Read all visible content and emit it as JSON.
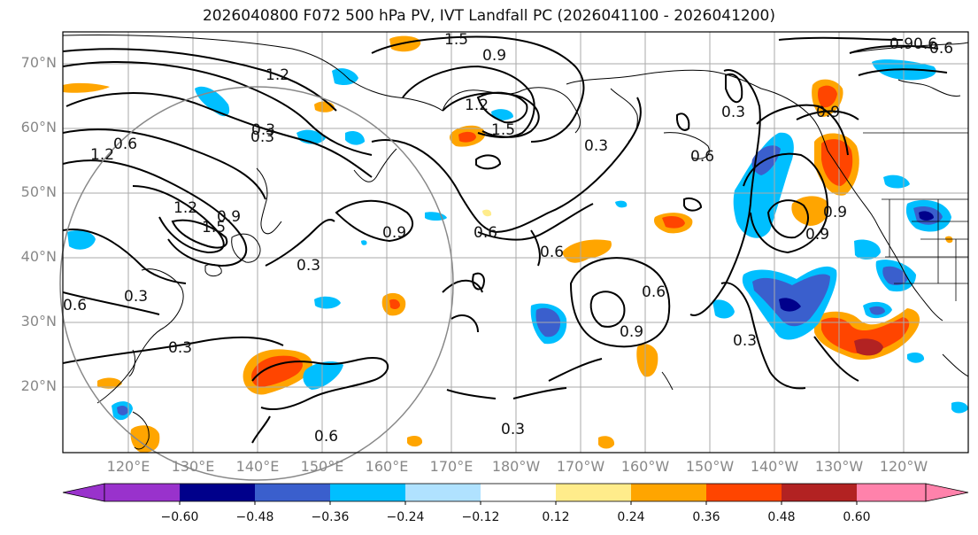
{
  "title": "2026040800 F072 500 hPa PV, IVT Landfall PC (2026041100 - 2026041200)",
  "lat_labels": [
    "70°N",
    "60°N",
    "50°N",
    "40°N",
    "30°N",
    "20°N"
  ],
  "lon_labels": [
    "120°E",
    "130°E",
    "140°E",
    "150°E",
    "160°E",
    "170°E",
    "180°W",
    "170°W",
    "160°W",
    "150°W",
    "140°W",
    "130°W",
    "120°W"
  ],
  "contour_labels": [
    "1.5",
    "0.9",
    "0.6",
    "1.2",
    "1.2",
    "0.3",
    "0.6",
    "1.2",
    "1.5",
    "0.9",
    "0.3",
    "1.2",
    "1.5",
    "0.9",
    "0.3",
    "0.6",
    "0.9",
    "0.6",
    "0.3",
    "0.6",
    "0.9",
    "0.3",
    "0.6",
    "0.3",
    "0.6",
    "0.3",
    "0.3",
    "0.6",
    "0.9",
    "0.3",
    "0.9",
    "0.6",
    "0.9"
  ],
  "colorbar": {
    "ticks": [
      "−0.60",
      "−0.48",
      "−0.36",
      "−0.24",
      "−0.12",
      "0.12",
      "0.24",
      "0.36",
      "0.48",
      "0.60"
    ],
    "colors": [
      "#9932CC",
      "#00008B",
      "#3A5FCD",
      "#00BFFF",
      "#B0E2FF",
      "#FFFFFF",
      "#FFEC8B",
      "#FFA500",
      "#FF4500",
      "#B22222",
      "#FF82AB"
    ]
  }
}
